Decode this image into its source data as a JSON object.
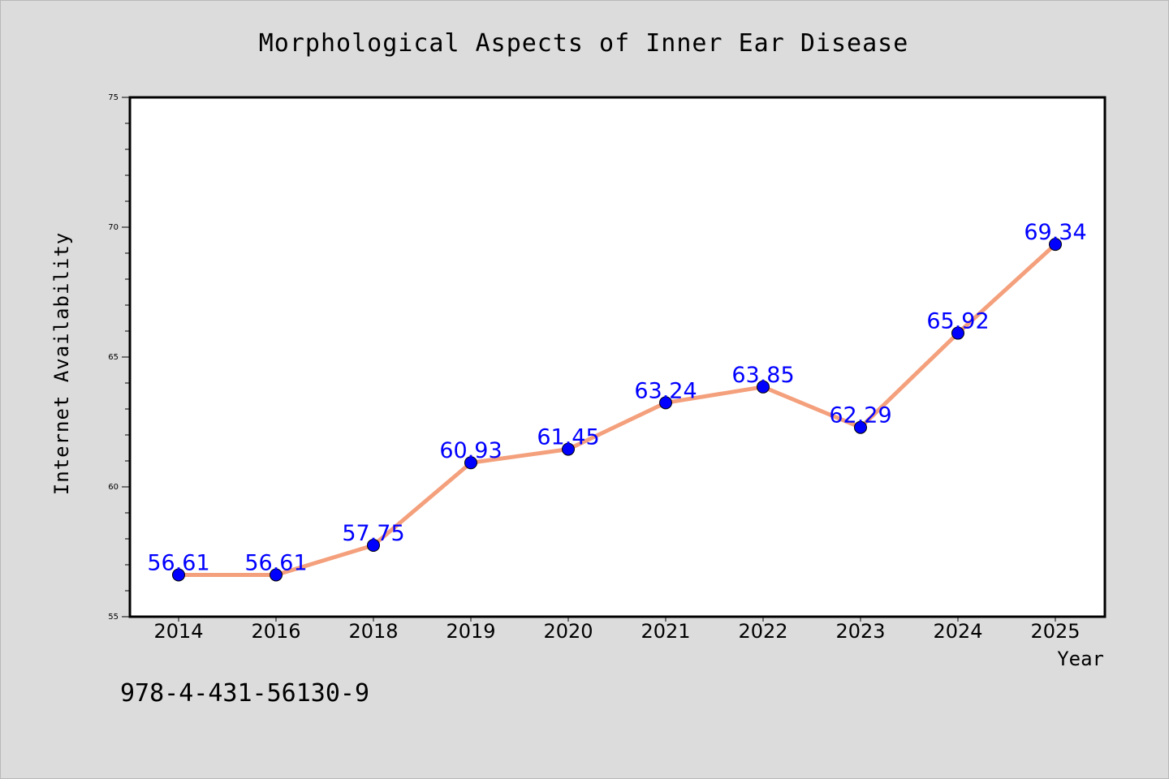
{
  "chart_data": {
    "type": "line",
    "title": "Morphological Aspects of Inner Ear Disease",
    "xlabel": "Year",
    "ylabel": "Internet Availability",
    "categories": [
      "2014",
      "2016",
      "2018",
      "2019",
      "2020",
      "2021",
      "2022",
      "2023",
      "2024",
      "2025"
    ],
    "series": [
      {
        "values": [
          56.61,
          56.61,
          57.75,
          60.93,
          61.45,
          63.24,
          63.85,
          62.29,
          65.92,
          69.34
        ]
      }
    ],
    "data_labels": [
      "56.61",
      "56.61",
      "57.75",
      "60.93",
      "61.45",
      "63.24",
      "63.85",
      "62.29",
      "65.92",
      "69.34"
    ],
    "ylim": [
      55,
      75
    ],
    "y_ticks": [
      "55",
      "60",
      "65",
      "70",
      "75"
    ],
    "grid": false,
    "colors": {
      "line": "#f4a07c",
      "marker": "#0000ff",
      "label": "#0000ff",
      "axis": "#000000",
      "plot_bg": "#ffffff",
      "page_bg": "#dcdcdc"
    }
  },
  "footer": {
    "isbn": "978-4-431-56130-9"
  }
}
